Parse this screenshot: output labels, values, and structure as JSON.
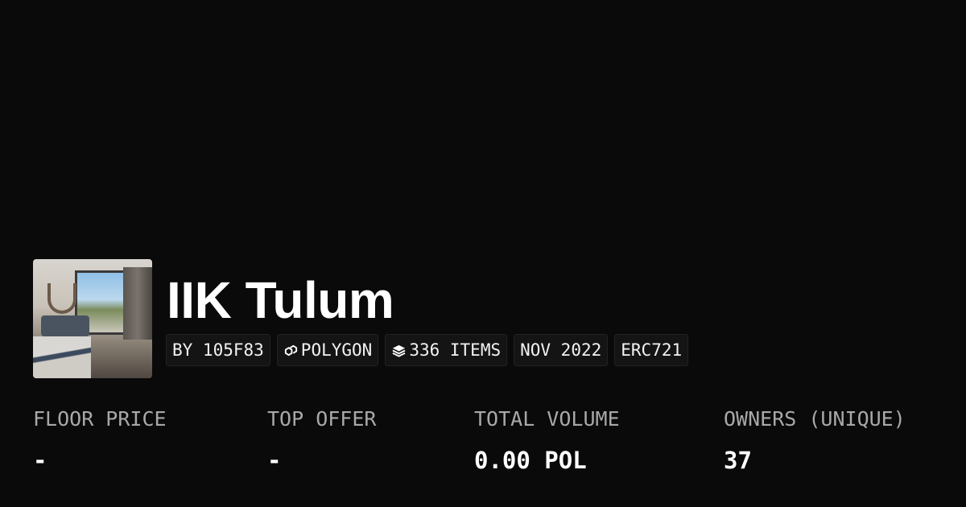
{
  "collection": {
    "name": "IIK Tulum",
    "tags": [
      {
        "label": "BY 105F83",
        "icon": null
      },
      {
        "label": "POLYGON",
        "icon": "polygon-chain-icon"
      },
      {
        "label": "336 ITEMS",
        "icon": "layers-icon"
      },
      {
        "label": "NOV 2022",
        "icon": null
      },
      {
        "label": "ERC721",
        "icon": null
      }
    ]
  },
  "stats": [
    {
      "label": "FLOOR PRICE",
      "value": "-"
    },
    {
      "label": "TOP OFFER",
      "value": "-"
    },
    {
      "label": "TOTAL VOLUME",
      "value": "0.00 POL"
    },
    {
      "label": "OWNERS (UNIQUE)",
      "value": "37"
    }
  ],
  "colors": {
    "background": "#0a0a0a",
    "pill_background": "#141414",
    "label": "#a8a8a8"
  }
}
